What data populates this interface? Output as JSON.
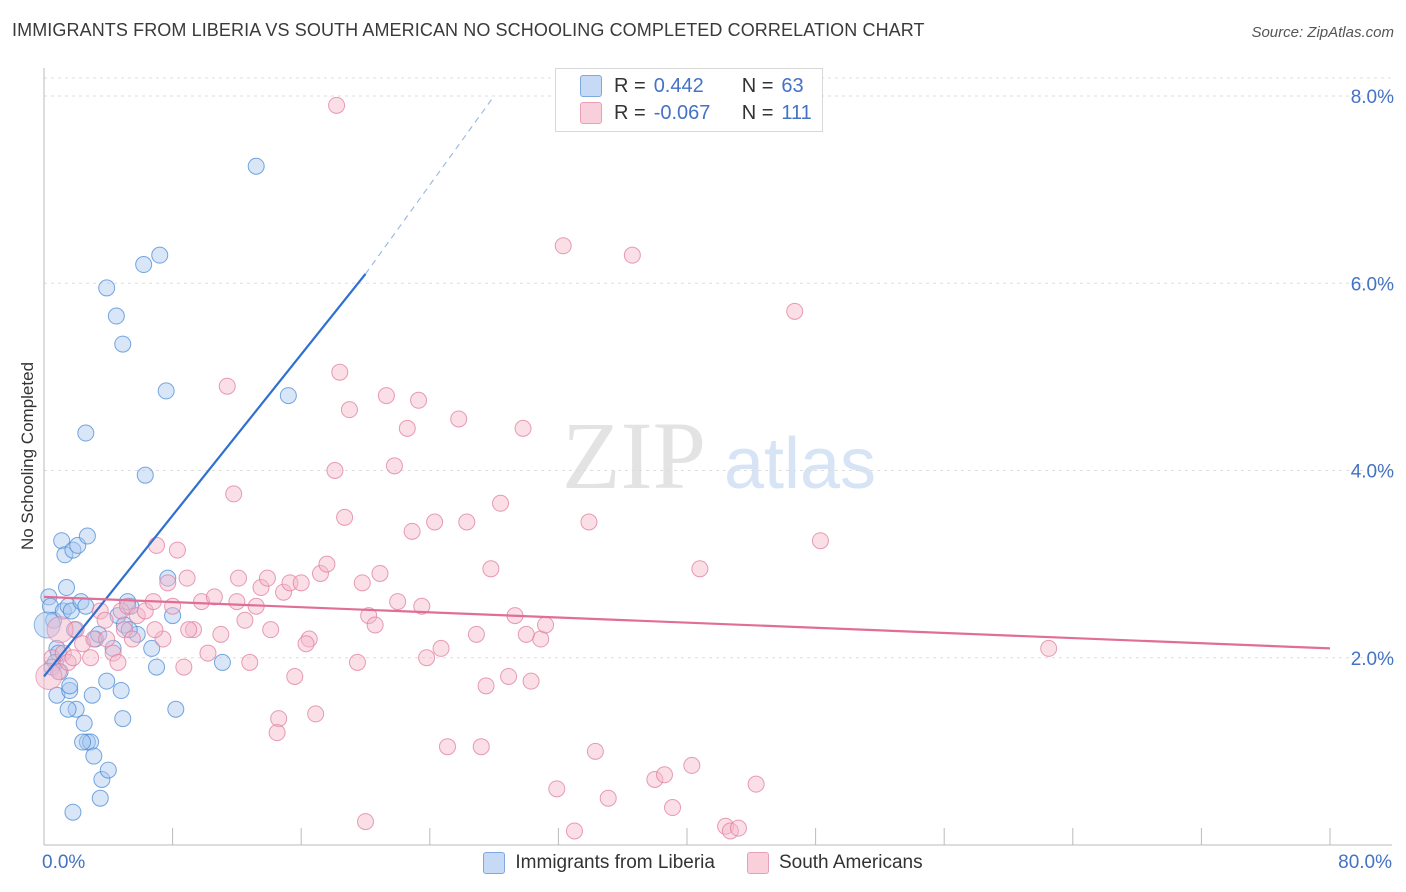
{
  "header": {
    "title": "IMMIGRANTS FROM LIBERIA VS SOUTH AMERICAN NO SCHOOLING COMPLETED CORRELATION CHART",
    "source": "Source: ZipAtlas.com"
  },
  "watermark": {
    "zip": "ZIP",
    "atlas": "atlas"
  },
  "legend_top": [
    {
      "r_label": "R =",
      "r_value": "0.442",
      "n_label": "N =",
      "n_value": "63",
      "color": "#a9c8f0"
    },
    {
      "r_label": "R =",
      "r_value": "-0.067",
      "n_label": "N =",
      "n_value": "111",
      "color": "#f5b8ca"
    }
  ],
  "legend_bottom": [
    {
      "label": "Immigrants from Liberia",
      "color": "#a9c8f0"
    },
    {
      "label": "South Americans",
      "color": "#f5b8ca"
    }
  ],
  "chart_data": {
    "type": "scatter",
    "ylabel": "No Schooling Completed",
    "xlim": [
      0,
      80
    ],
    "ylim": [
      0,
      8.2
    ],
    "x_tick_labels": {
      "min": "0.0%",
      "max": "80.0%"
    },
    "y_ticks": [
      {
        "value": 2,
        "label": "2.0%"
      },
      {
        "value": 4,
        "label": "4.0%"
      },
      {
        "value": 6,
        "label": "6.0%"
      },
      {
        "value": 8,
        "label": "8.0%"
      }
    ],
    "grid": true,
    "series": [
      {
        "name": "Immigrants from Liberia",
        "color": "#4a8bd6",
        "fill": "#a9c8f0",
        "trend": {
          "x0": 0.0,
          "y0": 1.8,
          "x1": 20.0,
          "y1": 6.1,
          "dash_to_x": 28.0,
          "dash_to_y": 8.0,
          "color": "#2e6fd0"
        },
        "points": [
          [
            0.3,
            2.65
          ],
          [
            0.4,
            2.55
          ],
          [
            0.6,
            2.4
          ],
          [
            0.8,
            2.1
          ],
          [
            0.9,
            2.05
          ],
          [
            0.7,
            1.95
          ],
          [
            0.5,
            1.9
          ],
          [
            1.0,
            1.85
          ],
          [
            1.2,
            2.5
          ],
          [
            1.4,
            2.75
          ],
          [
            1.5,
            2.55
          ],
          [
            1.7,
            2.5
          ],
          [
            1.9,
            2.3
          ],
          [
            1.1,
            3.25
          ],
          [
            1.3,
            3.1
          ],
          [
            1.8,
            3.15
          ],
          [
            2.1,
            3.2
          ],
          [
            2.7,
            3.3
          ],
          [
            2.3,
            2.6
          ],
          [
            2.6,
            2.55
          ],
          [
            0.8,
            1.6
          ],
          [
            1.6,
            1.65
          ],
          [
            2.0,
            1.45
          ],
          [
            2.5,
            1.3
          ],
          [
            3.0,
            1.6
          ],
          [
            2.7,
            1.1
          ],
          [
            2.9,
            1.1
          ],
          [
            3.1,
            0.95
          ],
          [
            3.6,
            0.7
          ],
          [
            4.0,
            0.8
          ],
          [
            3.5,
            0.5
          ],
          [
            1.5,
            1.45
          ],
          [
            1.8,
            0.35
          ],
          [
            3.2,
            2.2
          ],
          [
            3.4,
            2.25
          ],
          [
            3.9,
            1.75
          ],
          [
            4.3,
            2.1
          ],
          [
            4.6,
            2.45
          ],
          [
            5.0,
            2.35
          ],
          [
            4.8,
            1.65
          ],
          [
            4.9,
            1.35
          ],
          [
            5.4,
            2.55
          ],
          [
            5.8,
            2.25
          ],
          [
            6.7,
            2.1
          ],
          [
            7.0,
            1.9
          ],
          [
            5.2,
            2.6
          ],
          [
            3.9,
            5.95
          ],
          [
            4.5,
            5.65
          ],
          [
            4.9,
            5.35
          ],
          [
            5.3,
            2.3
          ],
          [
            2.6,
            4.4
          ],
          [
            6.2,
            6.2
          ],
          [
            7.2,
            6.3
          ],
          [
            7.6,
            4.85
          ],
          [
            6.3,
            3.95
          ],
          [
            7.7,
            2.85
          ],
          [
            8.0,
            2.45
          ],
          [
            8.2,
            1.45
          ],
          [
            11.1,
            1.95
          ],
          [
            13.2,
            7.25
          ],
          [
            15.2,
            4.8
          ],
          [
            2.4,
            1.1
          ],
          [
            1.6,
            1.7
          ]
        ],
        "point_radius": 8,
        "big_points": [
          [
            0.2,
            2.35
          ]
        ],
        "big_radius": 13
      },
      {
        "name": "South Americans",
        "color": "#e07ca0",
        "fill": "#f5b8ca",
        "trend": {
          "x0": 0.0,
          "y0": 2.65,
          "x1": 80.0,
          "y1": 2.1,
          "color": "#e06e97"
        },
        "points": [
          [
            0.5,
            2.0
          ],
          [
            0.9,
            1.85
          ],
          [
            1.2,
            2.05
          ],
          [
            1.5,
            1.95
          ],
          [
            1.8,
            2.0
          ],
          [
            2.0,
            2.3
          ],
          [
            2.4,
            2.15
          ],
          [
            2.9,
            2.0
          ],
          [
            3.1,
            2.2
          ],
          [
            3.5,
            2.5
          ],
          [
            3.9,
            2.2
          ],
          [
            4.3,
            2.05
          ],
          [
            4.6,
            1.95
          ],
          [
            4.8,
            2.5
          ],
          [
            5.0,
            2.3
          ],
          [
            5.2,
            2.55
          ],
          [
            5.8,
            2.45
          ],
          [
            6.3,
            2.5
          ],
          [
            6.8,
            2.6
          ],
          [
            7.0,
            3.2
          ],
          [
            7.4,
            2.2
          ],
          [
            7.7,
            2.8
          ],
          [
            8.0,
            2.55
          ],
          [
            8.3,
            3.15
          ],
          [
            8.7,
            1.9
          ],
          [
            8.9,
            2.85
          ],
          [
            9.3,
            2.3
          ],
          [
            9.8,
            2.6
          ],
          [
            10.2,
            2.05
          ],
          [
            10.6,
            2.65
          ],
          [
            11.0,
            2.25
          ],
          [
            11.4,
            4.9
          ],
          [
            11.8,
            3.75
          ],
          [
            12.1,
            2.85
          ],
          [
            12.5,
            2.4
          ],
          [
            12.8,
            1.95
          ],
          [
            13.2,
            2.55
          ],
          [
            13.5,
            2.75
          ],
          [
            13.9,
            2.85
          ],
          [
            14.1,
            2.3
          ],
          [
            14.6,
            1.35
          ],
          [
            14.9,
            2.7
          ],
          [
            15.3,
            2.8
          ],
          [
            15.6,
            1.8
          ],
          [
            16.0,
            2.8
          ],
          [
            16.5,
            2.2
          ],
          [
            16.9,
            1.4
          ],
          [
            17.2,
            2.9
          ],
          [
            17.6,
            3.0
          ],
          [
            18.1,
            4.0
          ],
          [
            18.4,
            5.05
          ],
          [
            18.7,
            3.5
          ],
          [
            19.0,
            4.65
          ],
          [
            19.5,
            1.95
          ],
          [
            19.8,
            2.8
          ],
          [
            20.2,
            2.45
          ],
          [
            20.6,
            2.35
          ],
          [
            20.9,
            2.9
          ],
          [
            21.3,
            4.8
          ],
          [
            21.8,
            4.05
          ],
          [
            22.0,
            2.6
          ],
          [
            22.6,
            4.45
          ],
          [
            22.9,
            3.35
          ],
          [
            23.3,
            4.75
          ],
          [
            23.8,
            2.0
          ],
          [
            24.3,
            3.45
          ],
          [
            24.7,
            2.1
          ],
          [
            25.1,
            1.05
          ],
          [
            25.8,
            4.55
          ],
          [
            26.3,
            3.45
          ],
          [
            26.9,
            2.25
          ],
          [
            27.2,
            1.05
          ],
          [
            27.8,
            2.95
          ],
          [
            28.4,
            3.65
          ],
          [
            28.9,
            1.8
          ],
          [
            29.3,
            2.45
          ],
          [
            29.8,
            4.45
          ],
          [
            30.3,
            1.75
          ],
          [
            30.9,
            2.2
          ],
          [
            31.2,
            2.35
          ],
          [
            31.9,
            0.6
          ],
          [
            32.3,
            6.4
          ],
          [
            33.0,
            0.15
          ],
          [
            33.9,
            3.45
          ],
          [
            34.3,
            1.0
          ],
          [
            35.1,
            0.5
          ],
          [
            36.6,
            6.3
          ],
          [
            38.0,
            0.7
          ],
          [
            38.6,
            0.75
          ],
          [
            39.1,
            0.4
          ],
          [
            40.3,
            0.85
          ],
          [
            40.8,
            2.95
          ],
          [
            42.4,
            0.2
          ],
          [
            42.7,
            0.15
          ],
          [
            43.2,
            0.18
          ],
          [
            44.3,
            0.65
          ],
          [
            46.7,
            5.7
          ],
          [
            48.3,
            3.25
          ],
          [
            62.5,
            2.1
          ],
          [
            18.2,
            7.9
          ],
          [
            6.9,
            2.3
          ],
          [
            3.8,
            2.4
          ],
          [
            5.5,
            2.2
          ],
          [
            9.0,
            2.3
          ],
          [
            12.0,
            2.6
          ],
          [
            14.5,
            1.2
          ],
          [
            16.3,
            2.15
          ],
          [
            20.0,
            0.25
          ],
          [
            23.5,
            2.55
          ],
          [
            27.5,
            1.7
          ],
          [
            30.0,
            2.25
          ]
        ],
        "point_radius": 8,
        "big_points": [
          [
            0.3,
            1.8
          ],
          [
            1.0,
            2.3
          ]
        ],
        "big_radius": 13
      }
    ]
  }
}
